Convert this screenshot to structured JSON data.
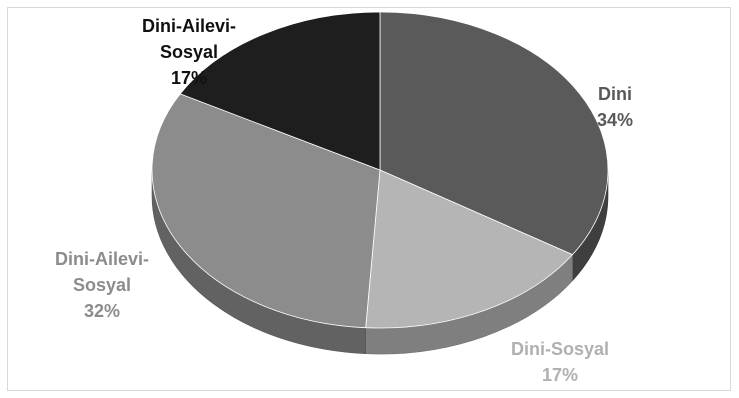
{
  "chart_data": {
    "type": "pie",
    "title": "",
    "slices": [
      {
        "label": "Dini",
        "value": 34,
        "percent_label": "34%",
        "color": "#5a5a5a",
        "label_color": "#595959"
      },
      {
        "label": "Dini-Sosyal",
        "value": 17,
        "percent_label": "17%",
        "color": "#b5b5b5",
        "label_color": "#b0b0b0"
      },
      {
        "label": "Dini-Ailevi-Sosyal",
        "value": 32,
        "percent_label": "32%",
        "color": "#8c8c8c",
        "label_color": "#8c8c8c"
      },
      {
        "label": "Dini-Ailevi-Sosyal",
        "value": 17,
        "percent_label": "17%",
        "color": "#1e1e1e",
        "label_color": "#111111"
      }
    ],
    "style": "3d",
    "legend": "none"
  }
}
